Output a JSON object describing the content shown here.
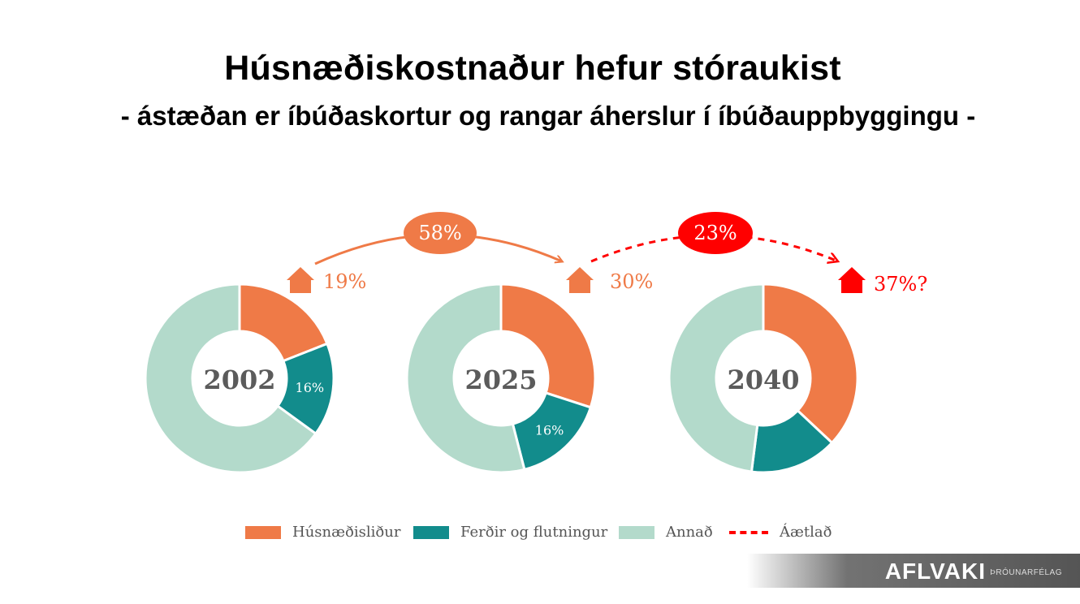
{
  "header": {
    "title": "Húsnæðiskostnaður hefur stóraukist",
    "subtitle": "- ástæðan er íbúðaskortur og rangar áherslur í íbúðauppbyggingu -"
  },
  "colors": {
    "housing": "#ef7a47",
    "transport": "#128c8c",
    "other": "#b3dacb",
    "estimate": "#ff0000"
  },
  "chart_data": {
    "type": "pie",
    "variant": "donut",
    "series_names": [
      "Húsnæðisliður",
      "Ferðir og flutningur",
      "Annað"
    ],
    "charts": [
      {
        "year": "2002",
        "values": [
          19,
          16,
          65
        ],
        "slice_labels": [
          "",
          "16%",
          ""
        ]
      },
      {
        "year": "2025",
        "values": [
          30,
          16,
          54
        ],
        "slice_labels": [
          "",
          "16%",
          ""
        ]
      },
      {
        "year": "2040",
        "values": [
          37,
          15,
          48
        ],
        "slice_labels": [
          "",
          "",
          ""
        ],
        "estimated": true
      }
    ],
    "annotations": {
      "housing_share": [
        "19%",
        "30%",
        "37%?"
      ],
      "growth": [
        {
          "label": "58%",
          "from": "2002",
          "to": "2025",
          "estimated": false
        },
        {
          "label": "23%",
          "from": "2025",
          "to": "2040",
          "estimated": true
        }
      ]
    }
  },
  "legend": [
    {
      "label": "Húsnæðisliður",
      "kind": "swatch",
      "color": "#ef7a47"
    },
    {
      "label": "Ferðir og flutningur",
      "kind": "swatch",
      "color": "#128c8c"
    },
    {
      "label": "Annað",
      "kind": "swatch",
      "color": "#b3dacb"
    },
    {
      "label": "Áætlað",
      "kind": "dashed-line",
      "color": "#ff0000"
    }
  ],
  "brand": {
    "name": "AFLVAKI",
    "sub": "ÞRÓUNARFÉLAG"
  }
}
